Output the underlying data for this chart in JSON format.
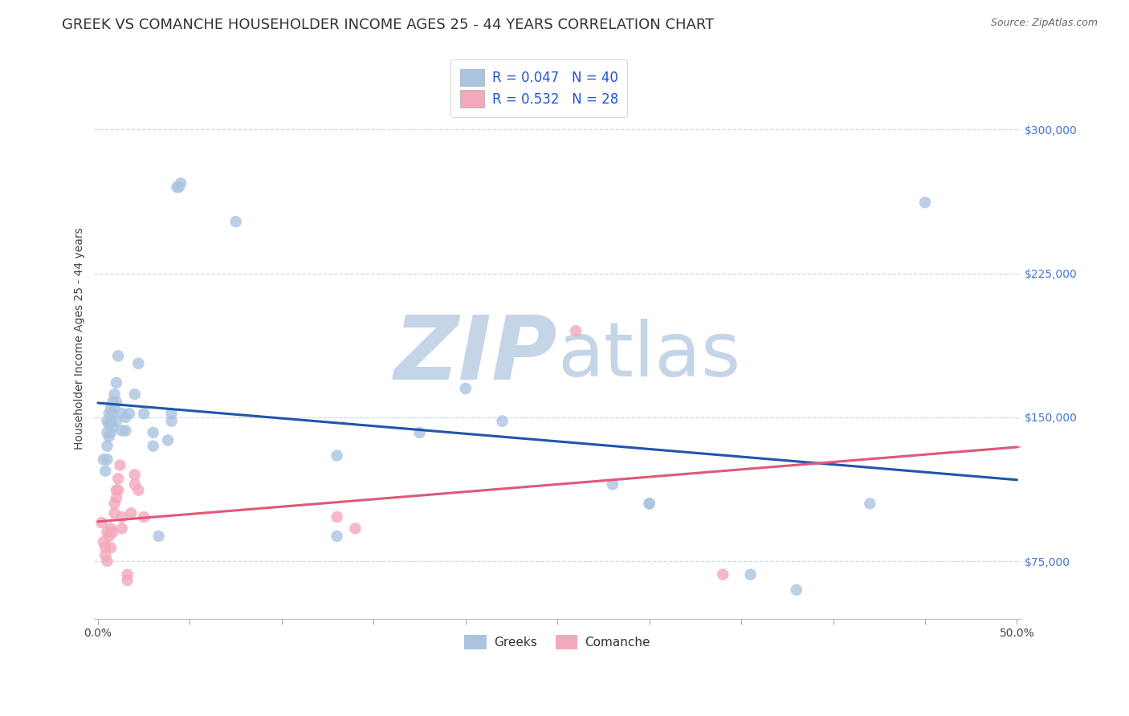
{
  "title": "GREEK VS COMANCHE HOUSEHOLDER INCOME AGES 25 - 44 YEARS CORRELATION CHART",
  "source": "Source: ZipAtlas.com",
  "ylabel": "Householder Income Ages 25 - 44 years",
  "xlim": [
    -0.002,
    0.502
  ],
  "ylim": [
    45000,
    337000
  ],
  "xticks": [
    0.0,
    0.05,
    0.1,
    0.15,
    0.2,
    0.25,
    0.3,
    0.35,
    0.4,
    0.45,
    0.5
  ],
  "xticklabels": [
    "0.0%",
    "",
    "",
    "",
    "",
    "",
    "",
    "",
    "",
    "",
    "50.0%"
  ],
  "ytick_positions": [
    75000,
    150000,
    225000,
    300000
  ],
  "ytick_labels": [
    "$75,000",
    "$150,000",
    "$225,000",
    "$300,000"
  ],
  "greek_color": "#aac4e0",
  "comanche_color": "#f4a8bc",
  "greek_line_color": "#2255aa",
  "comanche_line_color": "#e05878",
  "watermark_zip": "ZIP",
  "watermark_atlas": "atlas",
  "watermark_color": "#c5d5e8",
  "greek_points": [
    [
      0.003,
      128000
    ],
    [
      0.004,
      122000
    ],
    [
      0.005,
      148000
    ],
    [
      0.005,
      142000
    ],
    [
      0.005,
      135000
    ],
    [
      0.005,
      128000
    ],
    [
      0.006,
      152000
    ],
    [
      0.006,
      146000
    ],
    [
      0.006,
      140000
    ],
    [
      0.007,
      155000
    ],
    [
      0.007,
      148000
    ],
    [
      0.007,
      142000
    ],
    [
      0.008,
      158000
    ],
    [
      0.008,
      152000
    ],
    [
      0.008,
      145000
    ],
    [
      0.009,
      162000
    ],
    [
      0.009,
      155000
    ],
    [
      0.01,
      168000
    ],
    [
      0.01,
      158000
    ],
    [
      0.01,
      148000
    ],
    [
      0.011,
      182000
    ],
    [
      0.013,
      152000
    ],
    [
      0.013,
      143000
    ],
    [
      0.015,
      150000
    ],
    [
      0.015,
      143000
    ],
    [
      0.017,
      152000
    ],
    [
      0.02,
      162000
    ],
    [
      0.022,
      178000
    ],
    [
      0.025,
      152000
    ],
    [
      0.03,
      142000
    ],
    [
      0.03,
      135000
    ],
    [
      0.033,
      88000
    ],
    [
      0.038,
      138000
    ],
    [
      0.04,
      152000
    ],
    [
      0.04,
      148000
    ],
    [
      0.043,
      270000
    ],
    [
      0.044,
      270000
    ],
    [
      0.045,
      272000
    ],
    [
      0.075,
      252000
    ],
    [
      0.13,
      130000
    ],
    [
      0.13,
      88000
    ],
    [
      0.175,
      142000
    ],
    [
      0.2,
      165000
    ],
    [
      0.22,
      148000
    ],
    [
      0.28,
      115000
    ],
    [
      0.3,
      105000
    ],
    [
      0.3,
      105000
    ],
    [
      0.355,
      68000
    ],
    [
      0.38,
      60000
    ],
    [
      0.42,
      105000
    ],
    [
      0.45,
      262000
    ]
  ],
  "comanche_points": [
    [
      0.002,
      95000
    ],
    [
      0.003,
      85000
    ],
    [
      0.004,
      82000
    ],
    [
      0.004,
      78000
    ],
    [
      0.005,
      90000
    ],
    [
      0.005,
      75000
    ],
    [
      0.006,
      88000
    ],
    [
      0.007,
      92000
    ],
    [
      0.007,
      82000
    ],
    [
      0.008,
      90000
    ],
    [
      0.009,
      105000
    ],
    [
      0.009,
      100000
    ],
    [
      0.01,
      112000
    ],
    [
      0.01,
      108000
    ],
    [
      0.011,
      118000
    ],
    [
      0.011,
      112000
    ],
    [
      0.012,
      125000
    ],
    [
      0.013,
      98000
    ],
    [
      0.013,
      92000
    ],
    [
      0.016,
      68000
    ],
    [
      0.016,
      65000
    ],
    [
      0.018,
      100000
    ],
    [
      0.02,
      120000
    ],
    [
      0.02,
      115000
    ],
    [
      0.022,
      112000
    ],
    [
      0.025,
      98000
    ],
    [
      0.26,
      195000
    ],
    [
      0.34,
      68000
    ],
    [
      0.13,
      98000
    ],
    [
      0.14,
      92000
    ]
  ],
  "background_color": "#ffffff",
  "grid_color": "#cdd8ea",
  "title_fontsize": 13,
  "axis_label_fontsize": 10,
  "tick_fontsize": 10,
  "legend_fontsize": 12,
  "marker_size": 110
}
